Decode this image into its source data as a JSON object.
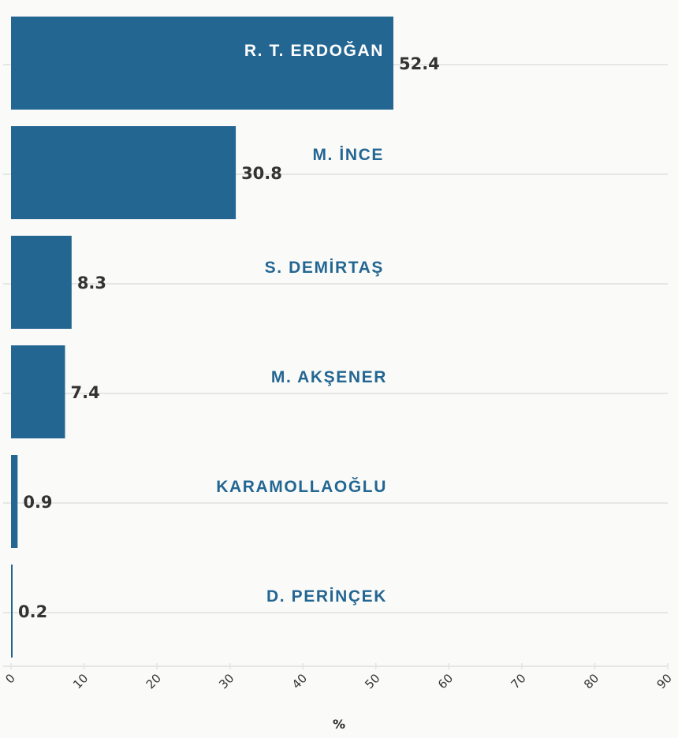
{
  "chart_data": {
    "type": "bar",
    "orientation": "horizontal",
    "categories": [
      "R. T. ERDOĞAN",
      "M. İNCE",
      "S. DEMİRTAŞ",
      "M. AKŞENER",
      "KARAMOLLAOĞLU",
      "D. PERİNÇEK"
    ],
    "values": [
      52.4,
      30.8,
      8.3,
      7.4,
      0.9,
      0.2
    ],
    "value_labels": [
      "52.4",
      "30.8",
      "8.3",
      "7.4",
      "0.9",
      "0.2"
    ],
    "xlabel": "%",
    "xlim": [
      0,
      90
    ],
    "xticks": [
      0,
      10,
      20,
      30,
      40,
      50,
      60,
      70,
      80,
      90
    ],
    "xtick_labels": [
      "0",
      "10",
      "20",
      "30",
      "40",
      "50",
      "60",
      "70",
      "80",
      "90"
    ],
    "grid": true,
    "colors": {
      "bar": "#246692",
      "label_on_bar": "#ffffff",
      "label_off_bar": "#246692",
      "value_text": "#333333",
      "grid": "#e5e6e6",
      "background": "#fafbf9"
    }
  }
}
